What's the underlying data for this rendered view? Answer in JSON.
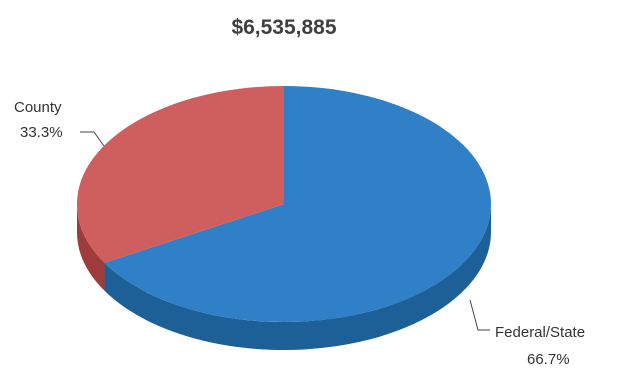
{
  "chart_data": {
    "type": "pie",
    "title": "$6,535,885",
    "slices": [
      {
        "label": "Federal/State",
        "percent_label": "66.7%",
        "value": 66.7,
        "color": "#2f80c6",
        "side_color": "#1d5f97"
      },
      {
        "label": "County",
        "percent_label": "33.3%",
        "value": 33.3,
        "color": "#cf5f5f",
        "side_color": "#9e3c3c"
      }
    ],
    "style": "3d"
  }
}
